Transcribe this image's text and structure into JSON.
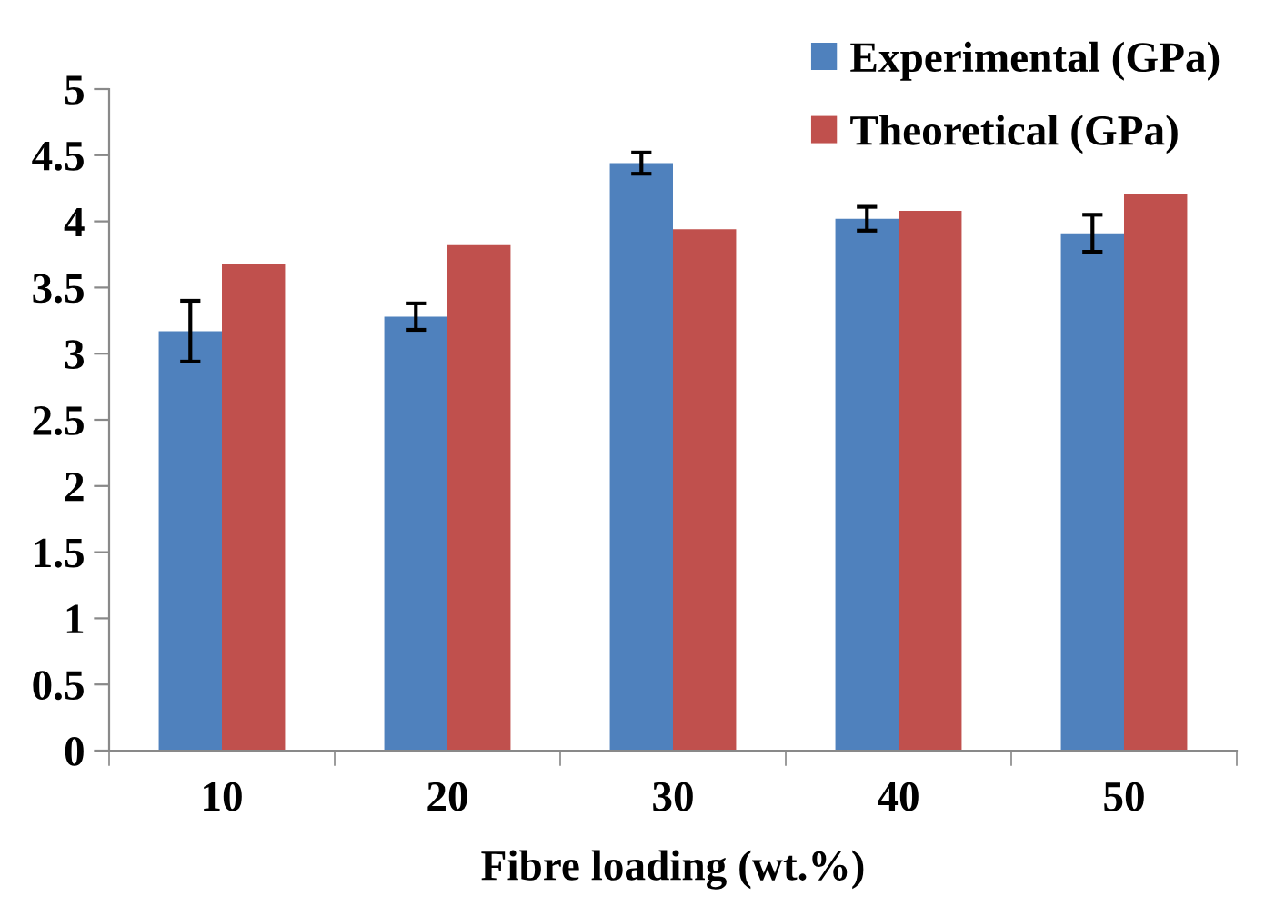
{
  "chart_data": {
    "type": "bar",
    "xlabel": "Fibre loading (wt.%)",
    "categories": [
      "10",
      "20",
      "30",
      "40",
      "50"
    ],
    "series": [
      {
        "name": "Experimental (GPa)",
        "color": "#4f81bd",
        "values": [
          3.17,
          3.28,
          4.44,
          4.02,
          3.91
        ],
        "errors": [
          0.23,
          0.1,
          0.08,
          0.09,
          0.14
        ]
      },
      {
        "name": "Theoretical (GPa)",
        "color": "#c0504d",
        "values": [
          3.68,
          3.82,
          3.94,
          4.08,
          4.21
        ]
      }
    ],
    "ylim": [
      0,
      5
    ],
    "yticks": [
      0,
      0.5,
      1,
      1.5,
      2,
      2.5,
      3,
      3.5,
      4,
      4.5,
      5
    ],
    "grid": false,
    "legend": "top right"
  }
}
